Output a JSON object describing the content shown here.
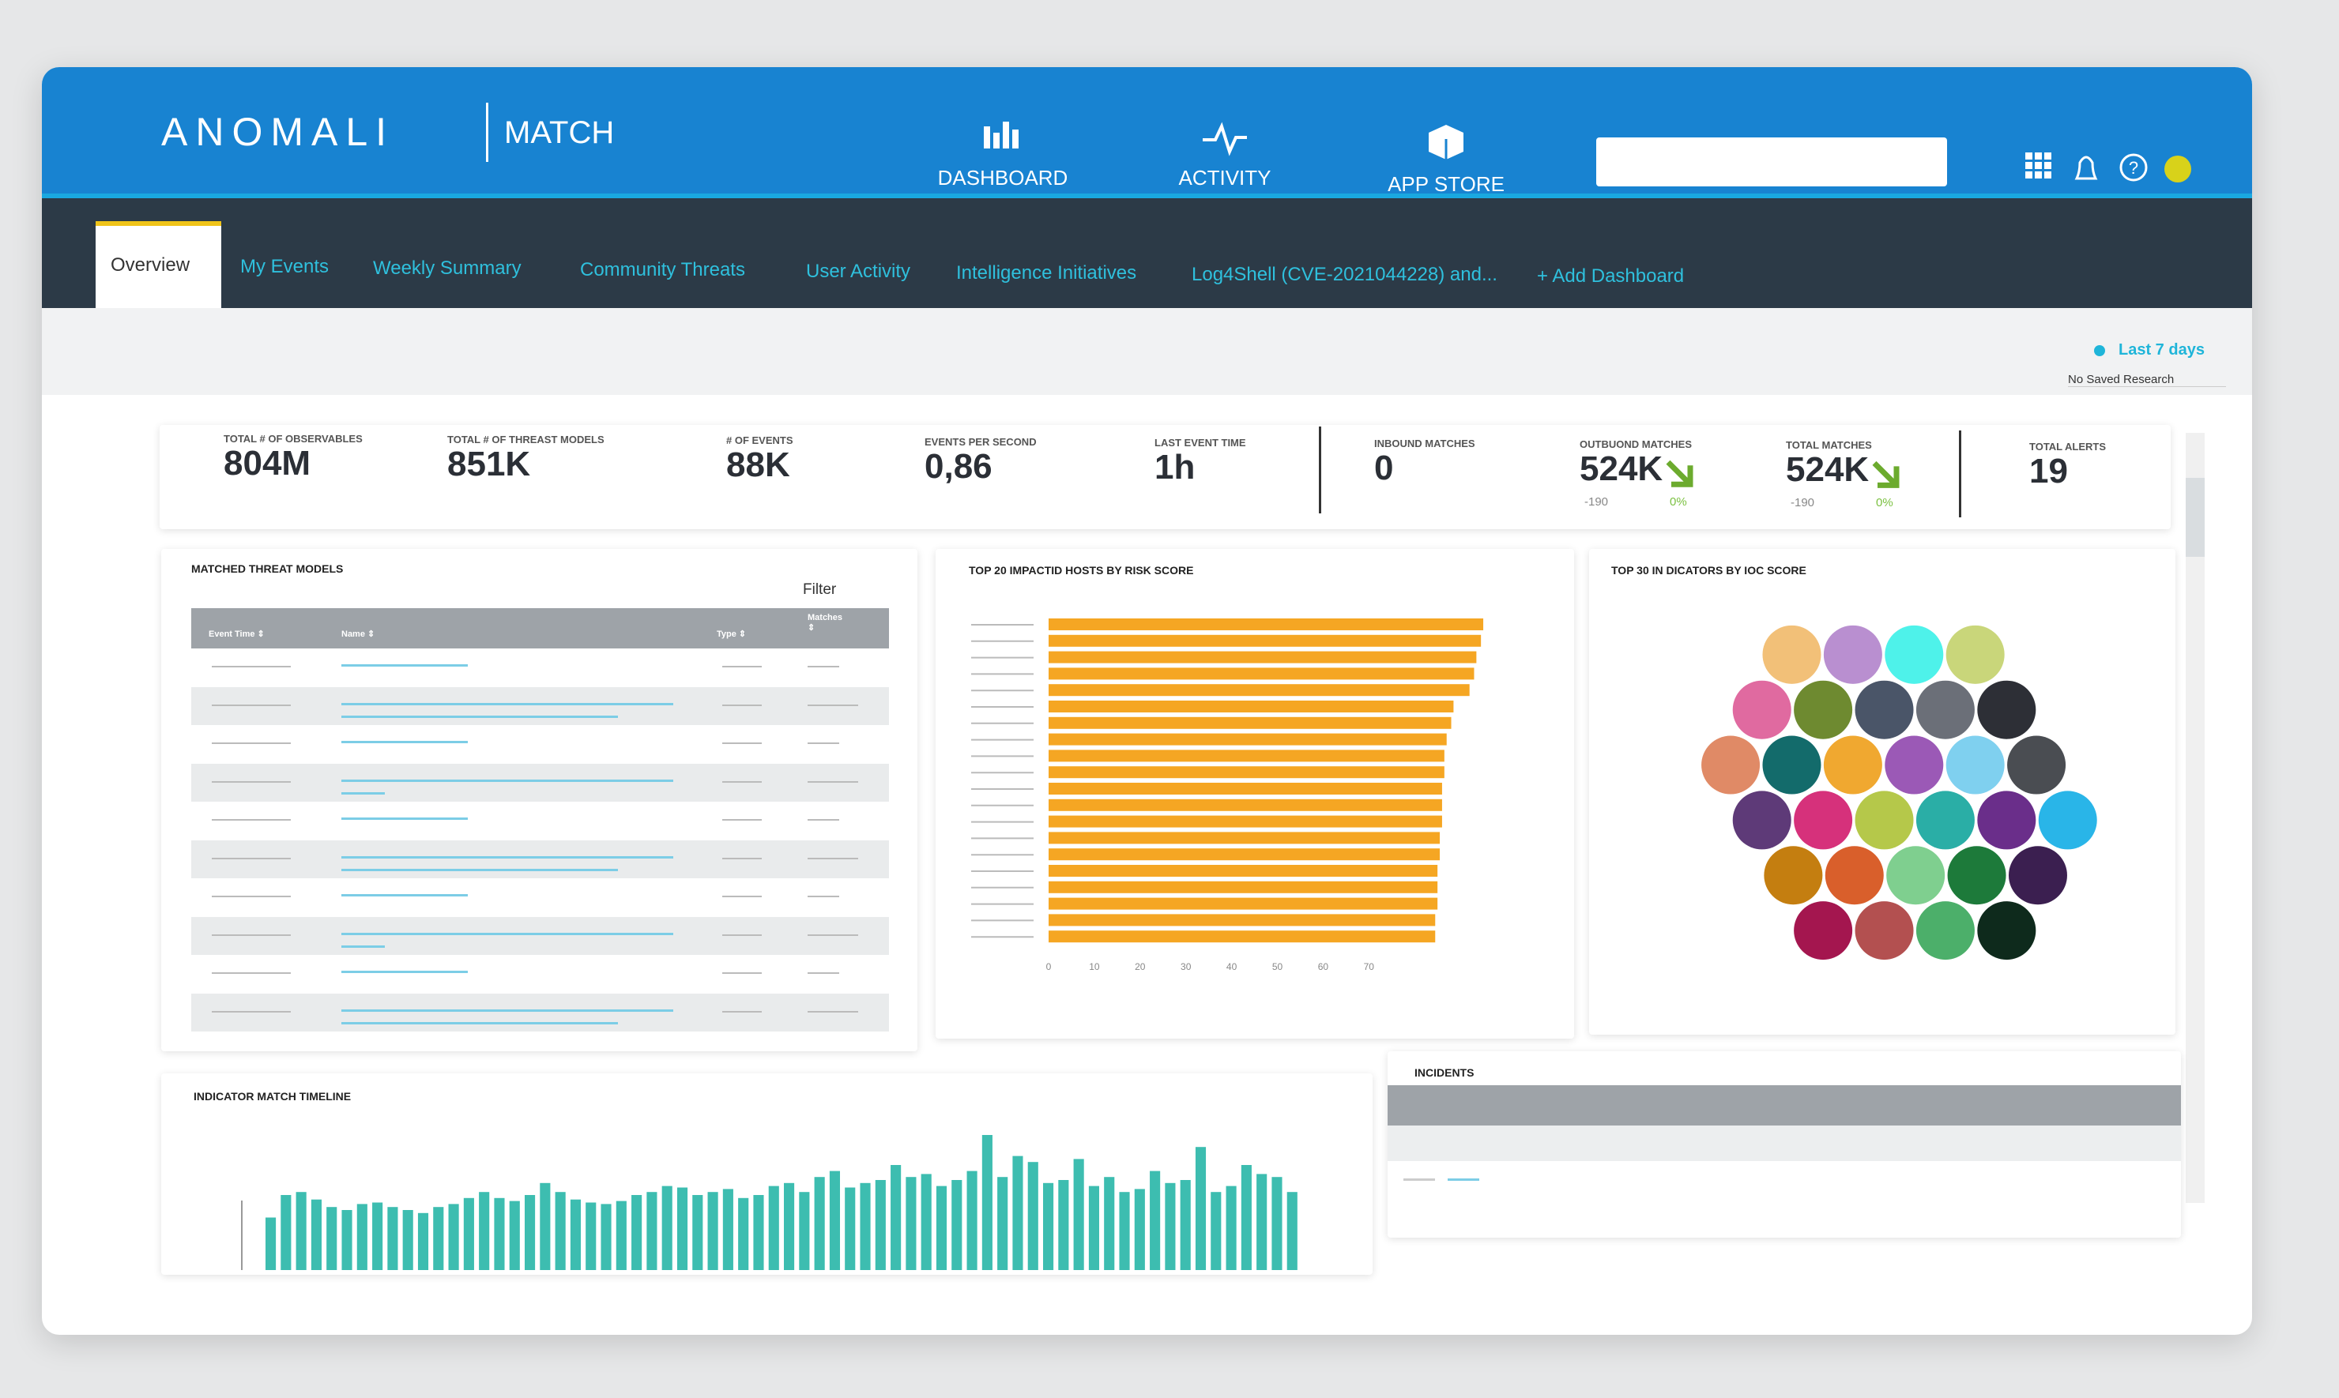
{
  "header": {
    "logo": "ANOMALI",
    "product": "MATCH",
    "nav": [
      "DASHBOARD",
      "ACTIVITY",
      "APP STORE"
    ]
  },
  "tabs": [
    "Overview",
    "My Events",
    "Weekly Summary",
    "Community Threats",
    "User Activity",
    "Intelligence Initiatives",
    "Log4Shell (CVE-2021044228) and...",
    "+ Add Dashboard"
  ],
  "filters": {
    "range": "Last 7 days",
    "research": "No Saved Research"
  },
  "kpis": [
    {
      "label": "TOTAL # OF OBSERVABLES",
      "value": "804M"
    },
    {
      "label": "TOTAL # OF THREAST MODELS",
      "value": "851K"
    },
    {
      "label": "# OF EVENTS",
      "value": "88K"
    },
    {
      "label": "EVENTS PER SECOND",
      "value": "0,86"
    },
    {
      "label": "LAST EVENT TIME",
      "value": "1h"
    },
    {
      "label": "INBOUND MATCHES",
      "value": "0"
    },
    {
      "label": "OUTBUOND MATCHES",
      "value": "524K",
      "sub": "-190",
      "change": "0%"
    },
    {
      "label": "TOTAL MATCHES",
      "value": "524K",
      "sub": "-190",
      "change": "0%"
    },
    {
      "label": "TOTAL ALERTS",
      "value": "19"
    }
  ],
  "threat_models": {
    "title": "MATCHED THREAT MODELS",
    "filter": "Filter",
    "columns": [
      "Event Time ⇕",
      "Name ⇕",
      "Type ⇕",
      "Matches ⇕"
    ]
  },
  "indicators": {
    "title": "TOP 30 IN DICATORS BY IOC SCORE",
    "colors": [
      [
        "#f2c078",
        "#b98fd0",
        "#4ef2ea",
        "#c9d67a"
      ],
      [
        "#e06aa0",
        "#6e8a30",
        "#4a5568",
        "#6b6f78",
        "#2d2f36"
      ],
      [
        "#e08a66",
        "#136b6b",
        "#f0a830",
        "#9b59b6",
        "#7fd0ef",
        "#4a4d52"
      ],
      [
        "#5e3a78",
        "#d6317b",
        "#b5c84a",
        "#2aaea6",
        "#6a2e8a",
        "#29b5e8"
      ],
      [
        "#c47e10",
        "#d95f2b",
        "#7fcf8f",
        "#1d7a3a",
        "#3b1f50"
      ],
      [
        "#a4164f",
        "#b35050",
        "#4caf6a",
        "#0e2a1c"
      ]
    ]
  },
  "incidents": {
    "title": "INCIDENTS"
  },
  "chart_data": [
    {
      "type": "bar",
      "orientation": "horizontal",
      "title": "TOP 20 IMPACTID HOSTS BY RISK SCORE",
      "categories": [
        null,
        null,
        null,
        null,
        null,
        null,
        null,
        null,
        null,
        null,
        null,
        null,
        null,
        null,
        null,
        null,
        null,
        null,
        null,
        null
      ],
      "values": [
        95,
        94.5,
        93.5,
        93,
        92,
        88.5,
        88,
        87,
        86.5,
        86.5,
        86,
        86,
        86,
        85.5,
        85.5,
        85,
        85,
        85,
        84.5,
        84.5
      ],
      "xlim": [
        0,
        100
      ],
      "xticks": [
        0,
        10,
        20,
        30,
        40,
        50,
        60,
        70
      ],
      "color": "#f5a623"
    },
    {
      "type": "bar",
      "title": "INDICATOR MATCH TIMELINE",
      "values": [
        35,
        50,
        52,
        47,
        42,
        40,
        44,
        45,
        42,
        40,
        38,
        42,
        44,
        48,
        52,
        48,
        46,
        50,
        58,
        52,
        47,
        45,
        44,
        46,
        50,
        52,
        56,
        55,
        50,
        52,
        54,
        48,
        50,
        56,
        58,
        52,
        62,
        66,
        55,
        58,
        60,
        70,
        62,
        64,
        56,
        60,
        66,
        90,
        62,
        76,
        72,
        58,
        60,
        74,
        56,
        62,
        52,
        54,
        66,
        58,
        60,
        82,
        52,
        56,
        70,
        64,
        62,
        52
      ],
      "ylim": [
        0,
        100
      ],
      "color": "#3dbdb0"
    }
  ]
}
